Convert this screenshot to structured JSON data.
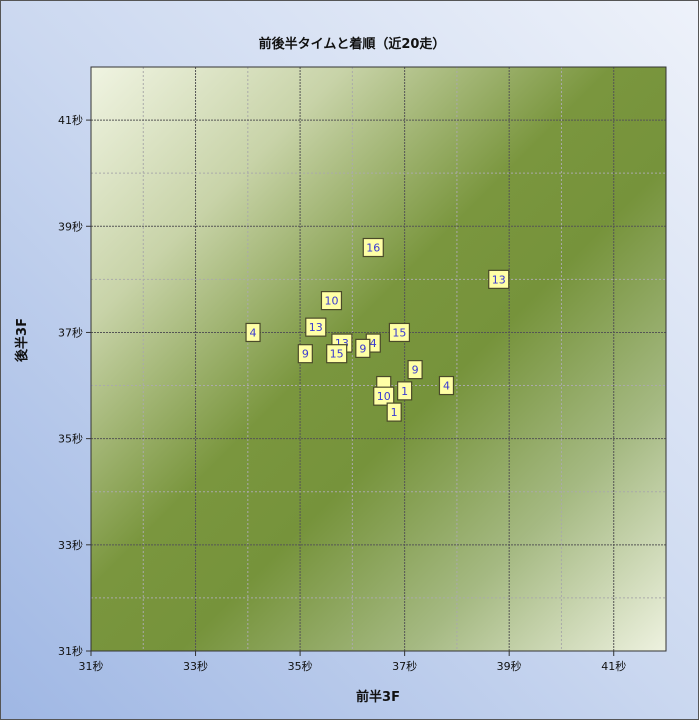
{
  "chart_data": {
    "type": "scatter",
    "title": "前後半タイムと着順（近20走）",
    "xlabel": "前半3F",
    "ylabel": "後半3F",
    "xlim": [
      31,
      42
    ],
    "ylim": [
      31,
      42
    ],
    "x_tick_labels": [
      "31秒",
      "33秒",
      "35秒",
      "37秒",
      "39秒",
      "41秒"
    ],
    "y_tick_labels": [
      "31秒",
      "33秒",
      "35秒",
      "37秒",
      "39秒",
      "41秒"
    ],
    "x_ticks": [
      31,
      33,
      35,
      37,
      39,
      41
    ],
    "y_ticks": [
      31,
      33,
      35,
      37,
      39,
      41
    ],
    "grid": true,
    "colors": {
      "band_dark": "#76933b",
      "band_light": "#eef2e0",
      "marker_fill": "#ffffa6",
      "marker_text": "#3b3bd0"
    },
    "points": [
      {
        "x": 36.4,
        "y": 38.6,
        "label": "16"
      },
      {
        "x": 38.8,
        "y": 38.0,
        "label": "13"
      },
      {
        "x": 35.6,
        "y": 37.6,
        "label": "10"
      },
      {
        "x": 34.1,
        "y": 37.0,
        "label": "4"
      },
      {
        "x": 35.8,
        "y": 36.8,
        "label": "13"
      },
      {
        "x": 35.3,
        "y": 37.1,
        "label": "13"
      },
      {
        "x": 36.4,
        "y": 36.8,
        "label": "4"
      },
      {
        "x": 36.9,
        "y": 37.0,
        "label": "15"
      },
      {
        "x": 35.1,
        "y": 36.6,
        "label": "9"
      },
      {
        "x": 35.7,
        "y": 36.6,
        "label": "15"
      },
      {
        "x": 36.2,
        "y": 36.7,
        "label": "9"
      },
      {
        "x": 37.2,
        "y": 36.3,
        "label": "9"
      },
      {
        "x": 37.8,
        "y": 36.0,
        "label": "4"
      },
      {
        "x": 37.0,
        "y": 35.9,
        "label": "1"
      },
      {
        "x": 36.6,
        "y": 36.0,
        "label": ""
      },
      {
        "x": 36.6,
        "y": 35.8,
        "label": "10"
      },
      {
        "x": 36.8,
        "y": 35.5,
        "label": "1"
      }
    ]
  }
}
